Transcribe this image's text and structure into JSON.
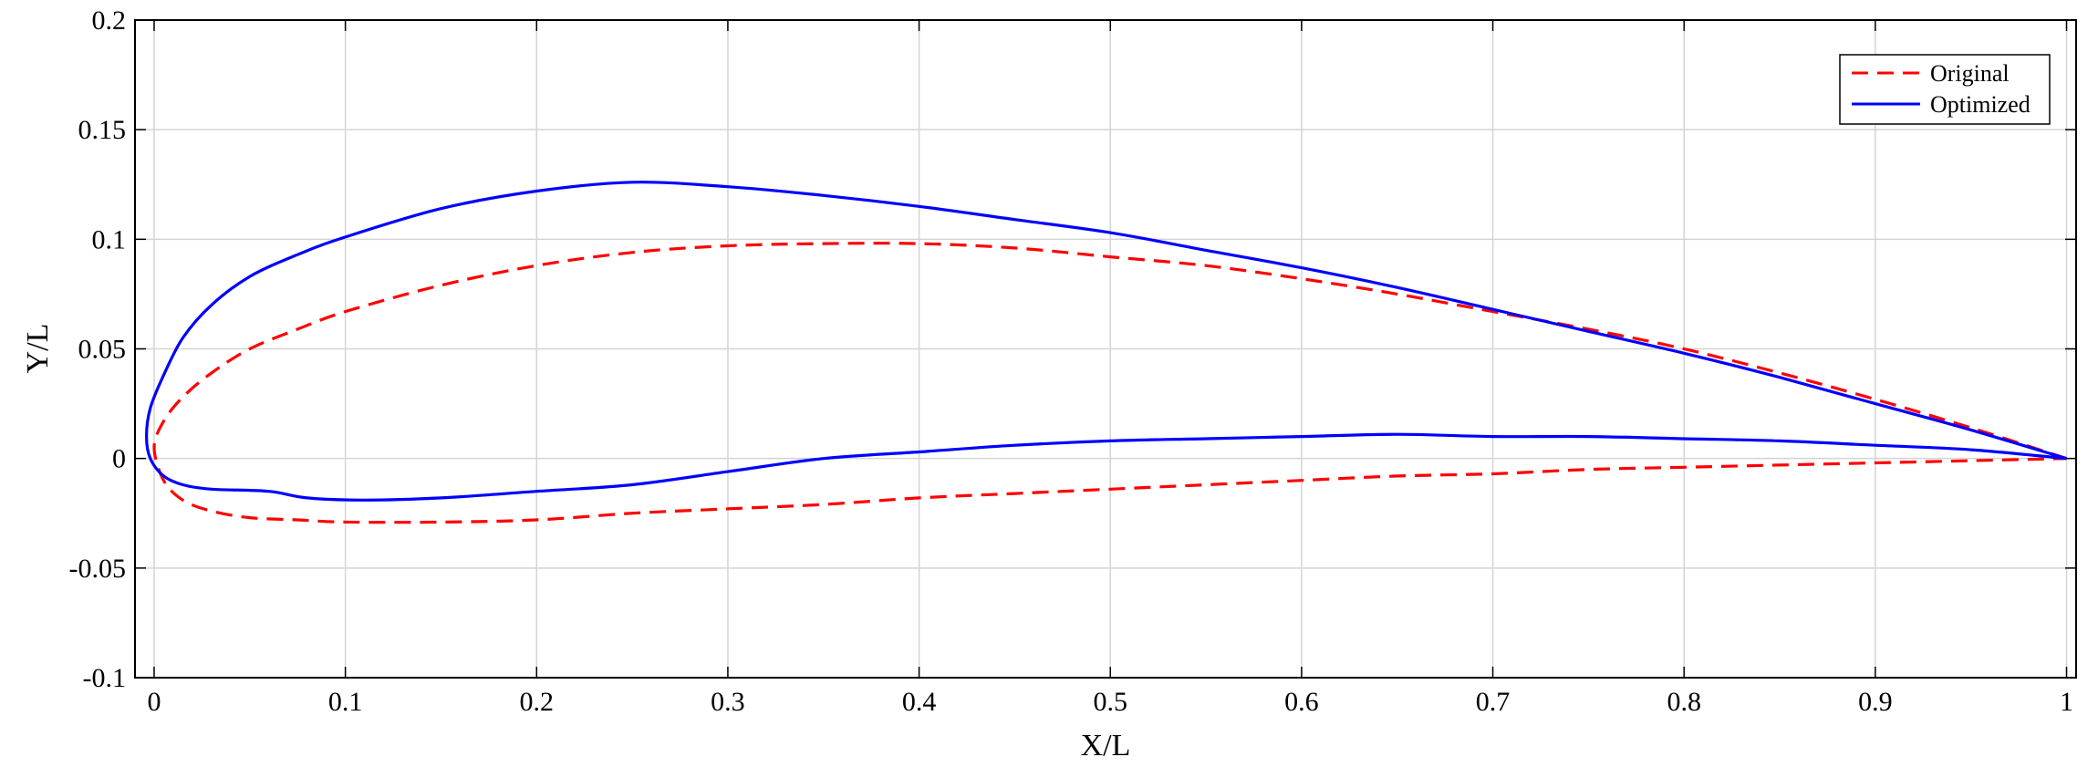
{
  "chart_data": {
    "type": "line",
    "title": "",
    "xlabel": "X/L",
    "ylabel": "Y/L",
    "xlim": [
      -0.01,
      1.005
    ],
    "ylim": [
      -0.1,
      0.2
    ],
    "xticks": [
      0,
      0.1,
      0.2,
      0.3,
      0.4,
      0.5,
      0.6,
      0.7,
      0.8,
      0.9,
      1
    ],
    "yticks": [
      -0.1,
      -0.05,
      0,
      0.05,
      0.1,
      0.15,
      0.2
    ],
    "xtick_labels": [
      "0",
      "0.1",
      "0.2",
      "0.3",
      "0.4",
      "0.5",
      "0.6",
      "0.7",
      "0.8",
      "0.9",
      "1"
    ],
    "ytick_labels": [
      "-0.1",
      "-0.05",
      "0",
      "0.05",
      "0.1",
      "0.15",
      "0.2"
    ],
    "grid": true,
    "legend_position": "top-right",
    "series": [
      {
        "name": "Original",
        "color": "#ff0000",
        "style": "dashed",
        "x": [
          1.0,
          0.95,
          0.9,
          0.85,
          0.8,
          0.75,
          0.7,
          0.65,
          0.6,
          0.55,
          0.5,
          0.45,
          0.4,
          0.35,
          0.3,
          0.25,
          0.2,
          0.15,
          0.1,
          0.075,
          0.05,
          0.03,
          0.015,
          0.005,
          0.0,
          0.005,
          0.015,
          0.03,
          0.05,
          0.075,
          0.1,
          0.15,
          0.2,
          0.25,
          0.3,
          0.35,
          0.4,
          0.45,
          0.5,
          0.55,
          0.6,
          0.65,
          0.7,
          0.75,
          0.8,
          0.85,
          0.9,
          0.95,
          1.0
        ],
        "y": [
          0.0,
          0.014,
          0.027,
          0.039,
          0.05,
          0.059,
          0.067,
          0.075,
          0.082,
          0.088,
          0.092,
          0.096,
          0.098,
          0.098,
          0.097,
          0.094,
          0.088,
          0.079,
          0.067,
          0.059,
          0.05,
          0.039,
          0.028,
          0.017,
          0.005,
          -0.01,
          -0.019,
          -0.024,
          -0.027,
          -0.028,
          -0.029,
          -0.029,
          -0.028,
          -0.025,
          -0.023,
          -0.021,
          -0.018,
          -0.016,
          -0.014,
          -0.012,
          -0.01,
          -0.008,
          -0.007,
          -0.005,
          -0.004,
          -0.003,
          -0.002,
          -0.001,
          0.0
        ]
      },
      {
        "name": "Optimized",
        "color": "#0000ff",
        "style": "solid",
        "x": [
          1.0,
          0.95,
          0.9,
          0.85,
          0.8,
          0.75,
          0.7,
          0.65,
          0.6,
          0.55,
          0.5,
          0.45,
          0.4,
          0.35,
          0.3,
          0.25,
          0.2,
          0.15,
          0.1,
          0.075,
          0.05,
          0.03,
          0.015,
          0.005,
          -0.002,
          -0.004,
          -0.002,
          0.005,
          0.015,
          0.03,
          0.06,
          0.08,
          0.11,
          0.15,
          0.2,
          0.25,
          0.3,
          0.35,
          0.4,
          0.45,
          0.5,
          0.55,
          0.6,
          0.65,
          0.7,
          0.75,
          0.8,
          0.85,
          0.9,
          0.95,
          1.0
        ],
        "y": [
          0.0,
          0.013,
          0.025,
          0.037,
          0.048,
          0.058,
          0.068,
          0.078,
          0.087,
          0.095,
          0.103,
          0.109,
          0.115,
          0.12,
          0.124,
          0.126,
          0.122,
          0.114,
          0.101,
          0.093,
          0.083,
          0.07,
          0.055,
          0.038,
          0.023,
          0.01,
          0.0,
          -0.008,
          -0.012,
          -0.014,
          -0.015,
          -0.018,
          -0.019,
          -0.018,
          -0.015,
          -0.012,
          -0.006,
          0.0,
          0.003,
          0.006,
          0.008,
          0.009,
          0.01,
          0.011,
          0.01,
          0.01,
          0.009,
          0.008,
          0.006,
          0.004,
          0.0
        ]
      }
    ]
  }
}
